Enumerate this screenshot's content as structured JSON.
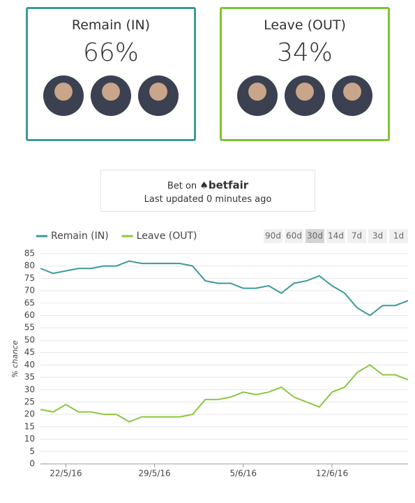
{
  "cards": [
    {
      "title": "Remain (IN)",
      "value": "66%",
      "color": "#3a9a9a"
    },
    {
      "title": "Leave (OUT)",
      "value": "34%",
      "color": "#7dc52e"
    }
  ],
  "betfair": {
    "prefix": "Bet on",
    "brand": "betfair",
    "updated": "Last updated 0 minutes ago"
  },
  "range_buttons": [
    "90d",
    "60d",
    "30d",
    "14d",
    "7d",
    "3d",
    "1d"
  ],
  "selected_range": "30d",
  "chart_data": {
    "type": "line",
    "y_label": "% chance",
    "x": [
      "2016-05-20",
      "2016-05-21",
      "2016-05-22",
      "2016-05-23",
      "2016-05-24",
      "2016-05-25",
      "2016-05-26",
      "2016-05-27",
      "2016-05-28",
      "2016-05-29",
      "2016-05-30",
      "2016-05-31",
      "2016-06-01",
      "2016-06-02",
      "2016-06-03",
      "2016-06-04",
      "2016-06-05",
      "2016-06-06",
      "2016-06-07",
      "2016-06-08",
      "2016-06-09",
      "2016-06-10",
      "2016-06-11",
      "2016-06-12",
      "2016-06-13",
      "2016-06-14",
      "2016-06-15",
      "2016-06-16",
      "2016-06-17",
      "2016-06-18"
    ],
    "series": [
      {
        "name": "Remain (IN)",
        "color": "#3a9a9a",
        "values": [
          79,
          77,
          78,
          79,
          79,
          80,
          80,
          82,
          81,
          81,
          81,
          81,
          80,
          74,
          73,
          73,
          71,
          71,
          72,
          69,
          73,
          74,
          76,
          72,
          69,
          63,
          60,
          64,
          64,
          66
        ]
      },
      {
        "name": "Leave (OUT)",
        "color": "#8cc63f",
        "values": [
          22,
          21,
          24,
          21,
          21,
          20,
          20,
          17,
          19,
          19,
          19,
          19,
          20,
          26,
          26,
          27,
          29,
          28,
          29,
          31,
          27,
          25,
          23,
          29,
          31,
          37,
          40,
          36,
          36,
          34
        ]
      }
    ],
    "xlim": [
      "2016-05-20",
      "2016-06-18"
    ],
    "xticks": [
      {
        "value": "2016-05-22",
        "label": "22/5/16"
      },
      {
        "value": "2016-05-29",
        "label": "29/5/16"
      },
      {
        "value": "2016-06-05",
        "label": "5/6/16"
      },
      {
        "value": "2016-06-12",
        "label": "12/6/16"
      }
    ],
    "ylim": [
      0,
      85
    ],
    "yticks": [
      0,
      5,
      10,
      15,
      20,
      25,
      30,
      35,
      40,
      45,
      50,
      55,
      60,
      65,
      70,
      75,
      80,
      85
    ],
    "grid": true
  }
}
